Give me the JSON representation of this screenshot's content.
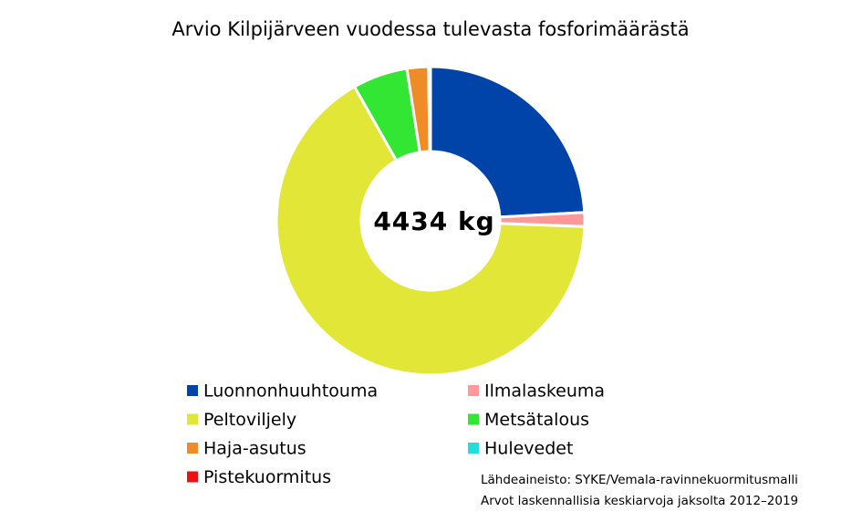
{
  "chart_data": {
    "type": "donut",
    "title": "Arvio Kilpijärveen vuodessa tulevasta fosforimäärästä",
    "center_label": "4434 kg",
    "categories": [
      "Luonnonhuuhtouma",
      "Ilmalaskeuma",
      "Peltoviljely",
      "Metsätalous",
      "Haja-asutus",
      "Hulevedet",
      "Pistekuormitus"
    ],
    "values": [
      1070,
      65,
      2935,
      255,
      100,
      5,
      4
    ],
    "colors": [
      "#0044aa",
      "#ff9999",
      "#e2e636",
      "#33e633",
      "#f08c28",
      "#22dddd",
      "#ee1111"
    ],
    "source_lines": [
      "Lähdeaineisto: SYKE/Vemala-ravinnekuormitusmalli",
      "Arvot laskennallisia keskiarvoja jaksolta 2012–2019"
    ]
  }
}
